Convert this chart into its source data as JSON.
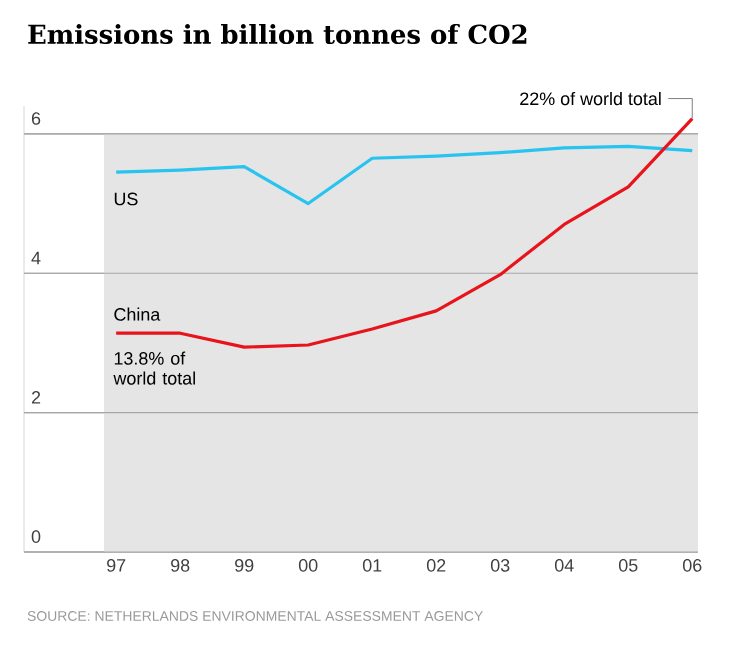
{
  "chart_data": {
    "type": "line",
    "title": "Emissions in billion tonnes of CO2",
    "categories": [
      "97",
      "98",
      "99",
      "00",
      "01",
      "02",
      "03",
      "04",
      "05",
      "06"
    ],
    "series": [
      {
        "name": "US",
        "color": "#29c3f0",
        "values": [
          5.45,
          5.48,
          5.53,
          5.0,
          5.65,
          5.68,
          5.73,
          5.8,
          5.82,
          5.76
        ]
      },
      {
        "name": "China",
        "color": "#e8141c",
        "values": [
          3.14,
          3.14,
          2.94,
          2.97,
          3.2,
          3.46,
          3.98,
          4.7,
          5.24,
          6.22
        ]
      }
    ],
    "ylim": [
      0,
      6.4
    ],
    "bands": [
      {
        "axis": "y",
        "from": 0,
        "to": 6,
        "color": "#e5e5e5"
      }
    ],
    "yticks": [
      0,
      2,
      4,
      6
    ],
    "grid": "y",
    "legend": false,
    "marker": "none",
    "line_style": "solid",
    "annotations": [
      {
        "text": "13.8% of world total",
        "x": "97",
        "y": 3.14
      },
      {
        "text": "22% of world total",
        "x": "06",
        "y": 6.22
      },
      "SOURCE: NETHERLANDS ENVIRONMENTAL ASSESSMENT AGENCY"
    ]
  }
}
